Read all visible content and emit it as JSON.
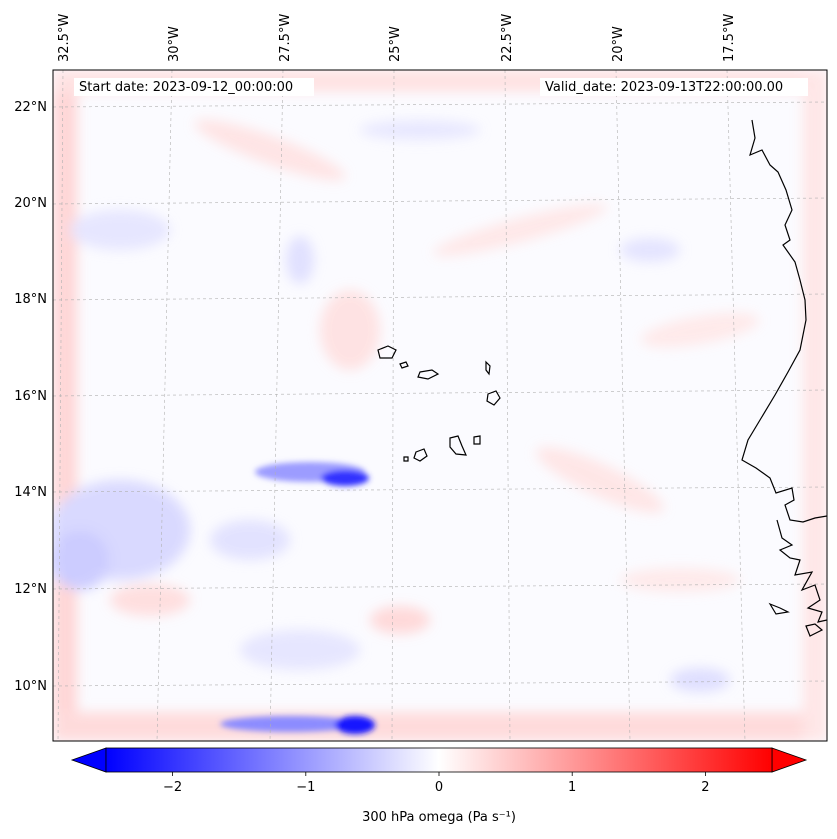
{
  "map": {
    "header": {
      "start_label": "Start date: 2023-09-12_00:00:00",
      "valid_label": "Valid_date: 2023-09-13T22:00:00.00"
    },
    "lon_ticks": [
      "32.5°W",
      "30°W",
      "27.5°W",
      "25°W",
      "22.5°W",
      "20°W",
      "17.5°W"
    ],
    "lat_ticks": [
      "22°N",
      "20°N",
      "18°N",
      "16°N",
      "14°N",
      "12°N",
      "10°N"
    ],
    "colorbar": {
      "ticks": [
        "−2",
        "−1",
        "0",
        "1",
        "2"
      ],
      "tick_values": [
        -2,
        -1,
        0,
        1,
        2
      ],
      "range": [
        -2.5,
        2.5
      ],
      "label": "300 hPa omega (Pa s⁻¹)",
      "colors": {
        "negative": "#0000ff",
        "zero": "#ffffff",
        "positive": "#ff0000"
      },
      "extend": "both"
    },
    "colors": {
      "coastline": "#000000",
      "gridline": "#b0b0b0"
    }
  }
}
